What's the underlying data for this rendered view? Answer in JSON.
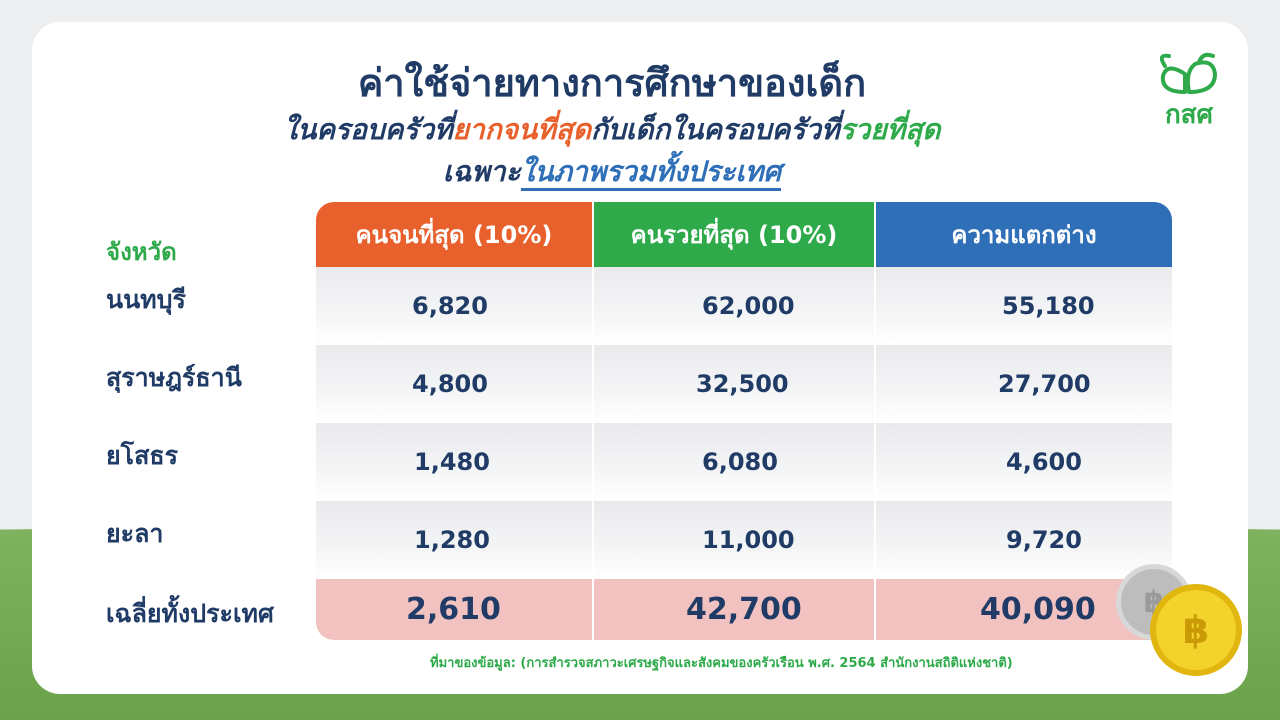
{
  "header": {
    "title": "ค่าใช้จ่ายทางการศึกษาของเด็ก",
    "subtitle_part1": "ในครอบครัวที่",
    "subtitle_poorest": "ยากจนที่สุด",
    "subtitle_part2": "กับเด็กในครอบครัวที่",
    "subtitle_richest": "รวยที่สุด",
    "subtitle2_part1": "เฉพาะ",
    "subtitle2_part2": "ในภาพรวมทั้งประเทศ"
  },
  "logo": {
    "text": "กสศ",
    "icon": "leaf-sprout-icon",
    "color": "#2eaa4a"
  },
  "table": {
    "row_header_label": "จังหวัด",
    "columns": [
      {
        "label": "คนจนที่สุด (10%)",
        "color": "#e8602c"
      },
      {
        "label": "คนรวยที่สุด (10%)",
        "color": "#2eaa4a"
      },
      {
        "label": "ความแตกต่าง",
        "color": "#2f6fb8"
      }
    ],
    "rows": [
      {
        "province": "นนทบุรี",
        "poorest": "6,820",
        "richest": "62,000",
        "difference": "55,180"
      },
      {
        "province": "สุราษฎร์ธานี",
        "poorest": "4,800",
        "richest": "32,500",
        "difference": "27,700"
      },
      {
        "province": "ยโสธร",
        "poorest": "1,480",
        "richest": "6,080",
        "difference": "4,600"
      },
      {
        "province": "ยะลา",
        "poorest": "1,280",
        "richest": "11,000",
        "difference": "9,720"
      }
    ],
    "total": {
      "label": "เฉลี่ยทั้งประเทศ",
      "poorest": "2,610",
      "richest": "42,700",
      "difference": "40,090"
    }
  },
  "coins": {
    "symbol": "฿",
    "icon": "baht-coin-icon"
  },
  "source": "ที่มาของข้อมูล:  (การสำรวจสภาวะเศรษฐกิจและสังคมของครัวเรือน พ.ศ. 2564 สำนักงานสถิติแห่งชาติ)",
  "colors": {
    "navy": "#1f3b66",
    "orange": "#e8602c",
    "green": "#2eaa4a",
    "blue": "#2f6fb8",
    "total_bg": "#f2c2c0"
  }
}
